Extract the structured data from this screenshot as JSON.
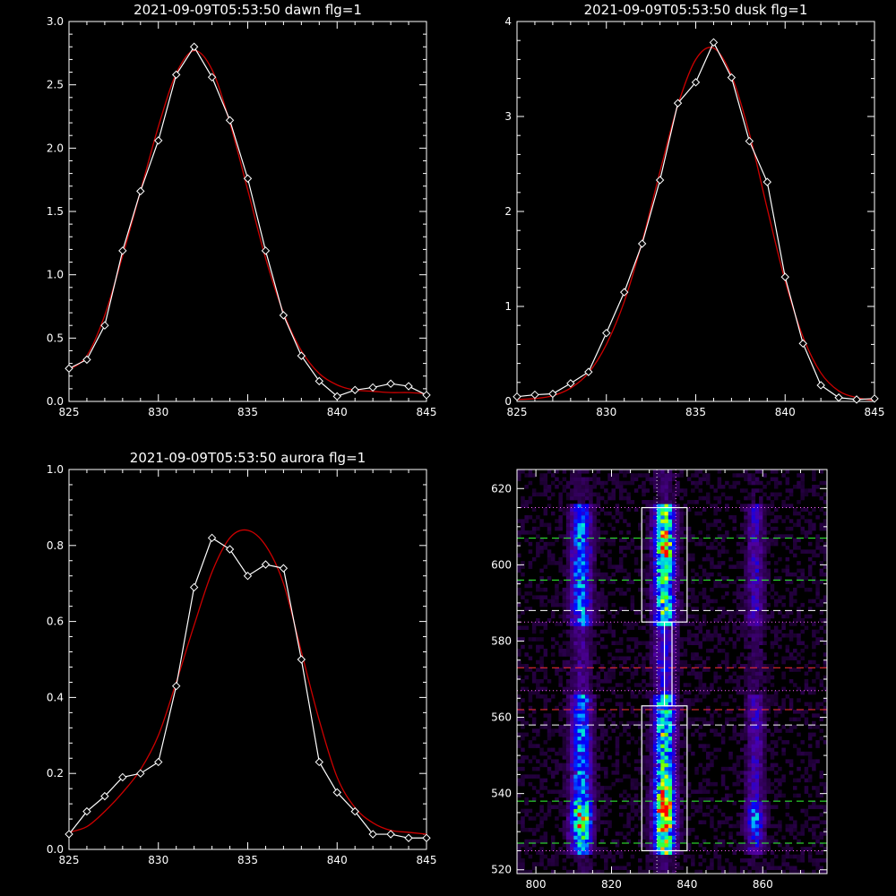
{
  "colors": {
    "background": "#000000",
    "axis": "#ffffff",
    "data_line": "#ffffff",
    "fit_line": "#cc0000"
  },
  "chart_data": [
    {
      "type": "line",
      "title": "2021-09-09T05:53:50 dawn flg=1",
      "xlim": [
        825,
        845
      ],
      "ylim": [
        0,
        3.0
      ],
      "xticks": [
        825,
        830,
        835,
        840,
        845
      ],
      "yticks": [
        0.0,
        0.5,
        1.0,
        1.5,
        2.0,
        2.5,
        3.0
      ],
      "ytick_labels": [
        "0.0",
        "0.5",
        "1.0",
        "1.5",
        "2.0",
        "2.5",
        "3.0"
      ],
      "series": [
        {
          "x": [
            825,
            826,
            827,
            828,
            829,
            830,
            831,
            832,
            833,
            834,
            835,
            836,
            837,
            838,
            839,
            840,
            841,
            842,
            843,
            844,
            845
          ],
          "values": [
            0.26,
            0.33,
            0.6,
            1.19,
            1.66,
            2.06,
            2.58,
            2.8,
            2.56,
            2.22,
            1.76,
            1.19,
            0.68,
            0.36,
            0.16,
            0.04,
            0.09,
            0.11,
            0.14,
            0.12,
            0.05
          ],
          "marker": "diamond"
        },
        {
          "x": [
            825,
            826,
            827,
            828,
            829,
            830,
            831,
            832,
            833,
            834,
            835,
            836,
            837,
            838,
            839,
            840,
            841,
            842,
            843,
            844,
            845
          ],
          "values": [
            0.25,
            0.36,
            0.68,
            1.15,
            1.66,
            2.17,
            2.59,
            2.77,
            2.62,
            2.2,
            1.67,
            1.13,
            0.7,
            0.4,
            0.22,
            0.13,
            0.09,
            0.08,
            0.07,
            0.07,
            0.06
          ],
          "marker": "none"
        }
      ]
    },
    {
      "type": "line",
      "title": "2021-09-09T05:53:50 dusk flg=1",
      "xlim": [
        825,
        845
      ],
      "ylim": [
        0,
        4
      ],
      "xticks": [
        825,
        830,
        835,
        840,
        845
      ],
      "yticks": [
        0,
        1,
        2,
        3,
        4
      ],
      "ytick_labels": [
        "0",
        "1",
        "2",
        "3",
        "4"
      ],
      "series": [
        {
          "x": [
            825,
            826,
            827,
            828,
            829,
            830,
            831,
            832,
            833,
            834,
            835,
            836,
            837,
            838,
            839,
            840,
            841,
            842,
            843,
            844,
            845
          ],
          "values": [
            0.05,
            0.07,
            0.08,
            0.19,
            0.31,
            0.72,
            1.15,
            1.66,
            2.33,
            3.14,
            3.36,
            3.78,
            3.41,
            2.74,
            2.31,
            1.31,
            0.61,
            0.17,
            0.04,
            0.02,
            0.03
          ],
          "marker": "diamond"
        },
        {
          "x": [
            825,
            826,
            827,
            828,
            829,
            830,
            831,
            832,
            833,
            834,
            835,
            836,
            837,
            838,
            839,
            840,
            841,
            842,
            843,
            844,
            845
          ],
          "values": [
            0.02,
            0.03,
            0.06,
            0.14,
            0.3,
            0.6,
            1.05,
            1.68,
            2.42,
            3.12,
            3.6,
            3.72,
            3.43,
            2.82,
            2.03,
            1.27,
            0.68,
            0.3,
            0.11,
            0.04,
            0.01
          ],
          "marker": "none"
        }
      ]
    },
    {
      "type": "line",
      "title": "2021-09-09T05:53:50 aurora flg=1",
      "xlim": [
        825,
        845
      ],
      "ylim": [
        0,
        1.0
      ],
      "xticks": [
        825,
        830,
        835,
        840,
        845
      ],
      "yticks": [
        0.0,
        0.2,
        0.4,
        0.6,
        0.8,
        1.0
      ],
      "ytick_labels": [
        "0.0",
        "0.2",
        "0.4",
        "0.6",
        "0.8",
        "1.0"
      ],
      "series": [
        {
          "x": [
            825,
            826,
            827,
            828,
            829,
            830,
            831,
            832,
            833,
            834,
            835,
            836,
            837,
            838,
            839,
            840,
            841,
            842,
            843,
            844,
            845
          ],
          "values": [
            0.04,
            0.1,
            0.14,
            0.19,
            0.2,
            0.23,
            0.43,
            0.69,
            0.82,
            0.79,
            0.72,
            0.75,
            0.74,
            0.5,
            0.23,
            0.15,
            0.1,
            0.04,
            0.04,
            0.03,
            0.03
          ],
          "marker": "diamond"
        },
        {
          "x": [
            825,
            826,
            827,
            828,
            829,
            830,
            831,
            832,
            833,
            834,
            835,
            836,
            837,
            838,
            839,
            840,
            841,
            842,
            843,
            844,
            845
          ],
          "values": [
            0.045,
            0.06,
            0.1,
            0.15,
            0.21,
            0.3,
            0.44,
            0.59,
            0.73,
            0.82,
            0.84,
            0.8,
            0.7,
            0.52,
            0.34,
            0.19,
            0.11,
            0.07,
            0.05,
            0.045,
            0.04
          ],
          "marker": "none"
        }
      ]
    },
    {
      "type": "heatmap",
      "title": "",
      "xlim": [
        795,
        877
      ],
      "ylim": [
        519,
        625
      ],
      "xticks": [
        800,
        820,
        840,
        860
      ],
      "yticks": [
        520,
        540,
        560,
        580,
        600,
        620
      ],
      "ytick_labels": [
        "520",
        "540",
        "560",
        "580",
        "600",
        "620"
      ],
      "columns": [
        812,
        834,
        858
      ],
      "boxes": [
        {
          "x0": 828,
          "x1": 840,
          "y0": 525,
          "y1": 563
        },
        {
          "x0": 828,
          "x1": 840,
          "y0": 585,
          "y1": 615
        },
        {
          "x0": 834,
          "x1": 836,
          "y0": 563,
          "y1": 585
        }
      ],
      "vlines": [
        {
          "x": 832,
          "color": "#ffffff",
          "style": "dotted"
        },
        {
          "x": 837,
          "color": "#ff66ff",
          "style": "dotted"
        }
      ],
      "hlines": [
        {
          "y": 615,
          "color": "#ff66ff",
          "style": "dotted"
        },
        {
          "y": 607,
          "color": "#33ff33",
          "style": "dashed"
        },
        {
          "y": 596,
          "color": "#33ff33",
          "style": "dashed"
        },
        {
          "y": 588,
          "color": "#ffffff",
          "style": "dashed"
        },
        {
          "y": 585,
          "color": "#ff66ff",
          "style": "dotted"
        },
        {
          "y": 573,
          "color": "#ff3333",
          "style": "dashed"
        },
        {
          "y": 567,
          "color": "#ff66ff",
          "style": "dotted"
        },
        {
          "y": 562,
          "color": "#ff3333",
          "style": "dashed"
        },
        {
          "y": 558,
          "color": "#ffffff",
          "style": "dashed"
        },
        {
          "y": 538,
          "color": "#33ff33",
          "style": "dashed"
        },
        {
          "y": 527,
          "color": "#33ff33",
          "style": "dashed"
        },
        {
          "y": 525,
          "color": "#ff66ff",
          "style": "dotted"
        }
      ]
    }
  ]
}
